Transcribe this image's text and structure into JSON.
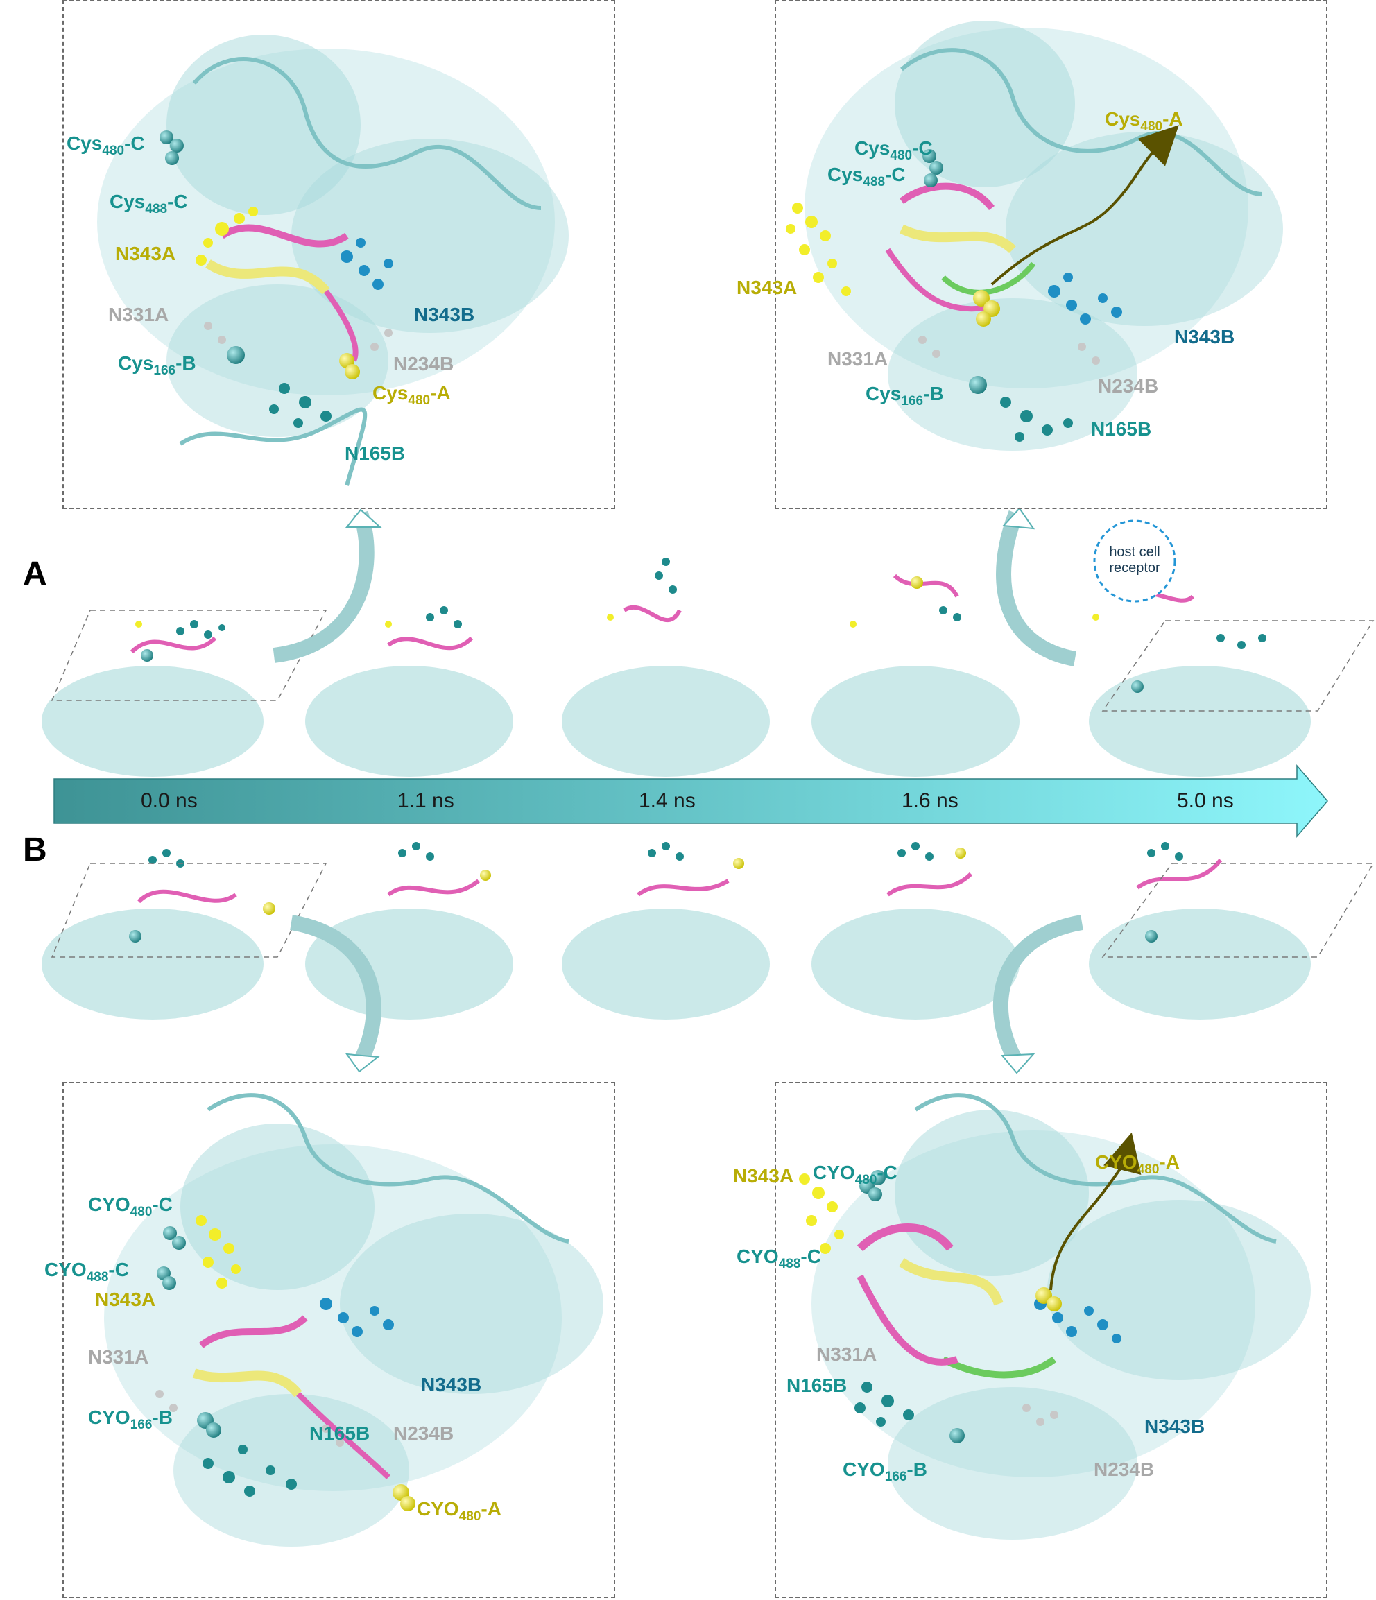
{
  "panels": {
    "a": "A",
    "b": "B"
  },
  "timeline": {
    "ticks": [
      "0.0 ns",
      "1.1 ns",
      "1.4 ns",
      "1.6 ns",
      "5.0 ns"
    ]
  },
  "receptor": {
    "line1": "host cell",
    "line2": "receptor"
  },
  "box_a1": {
    "cys480c": {
      "base": "Cys",
      "sub": "480",
      "suffix": "-C"
    },
    "cys488c": {
      "base": "Cys",
      "sub": "488",
      "suffix": "-C"
    },
    "n343a": "N343A",
    "n331a": "N331A",
    "cys166b": {
      "base": "Cys",
      "sub": "166",
      "suffix": "-B"
    },
    "n343b": "N343B",
    "n234b": "N234B",
    "cys480a": {
      "base": "Cys",
      "sub": "480",
      "suffix": "-A"
    },
    "n165b": "N165B"
  },
  "box_a2": {
    "cys480a": {
      "base": "Cys",
      "sub": "480",
      "suffix": "-A"
    },
    "cys480c": {
      "base": "Cys",
      "sub": "480",
      "suffix": "-C"
    },
    "cys488c": {
      "base": "Cys",
      "sub": "488",
      "suffix": "-C"
    },
    "n343a": "N343A",
    "n331a": "N331A",
    "n343b": "N343B",
    "n234b": "N234B",
    "cys166b": {
      "base": "Cys",
      "sub": "166",
      "suffix": "-B"
    },
    "n165b": "N165B"
  },
  "box_b1": {
    "cyo480c": {
      "base": "CYO",
      "sub": "480",
      "suffix": "-C"
    },
    "cyo488c": {
      "base": "CYO",
      "sub": "488",
      "suffix": "-C"
    },
    "n343a": "N343A",
    "n331a": "N331A",
    "n343b": "N343B",
    "cyo166b": {
      "base": "CYO",
      "sub": "166",
      "suffix": "-B"
    },
    "n165b": "N165B",
    "n234b": "N234B",
    "cyo480a": {
      "base": "CYO",
      "sub": "480",
      "suffix": "-A"
    }
  },
  "box_b2": {
    "n343a": "N343A",
    "cyo480c": {
      "base": "CYO",
      "sub": "480",
      "suffix": "-C"
    },
    "cyo480a": {
      "base": "CYO",
      "sub": "480",
      "suffix": "-A"
    },
    "cyo488c": {
      "base": "CYO",
      "sub": "488",
      "suffix": "-C"
    },
    "n331a": "N331A",
    "n165b": "N165B",
    "n343b": "N343B",
    "cyo166b": {
      "base": "CYO",
      "sub": "166",
      "suffix": "-B"
    },
    "n234b": "N234B"
  },
  "colors": {
    "protein": "#9fd6d8",
    "rbd_pink": "#e05fb4",
    "rbd_yellow": "#ece87a",
    "glycan_teal": "#1e8a8c",
    "glycan_blue": "#1f8fc4",
    "glycan_yellow": "#f2ee2a",
    "glycan_gray": "#c8c8c8",
    "loop_green": "#6bcb5e",
    "arrow_dark": "#5a5200",
    "timeline_start": "#3e9395",
    "timeline_end": "#8ef6fb"
  }
}
